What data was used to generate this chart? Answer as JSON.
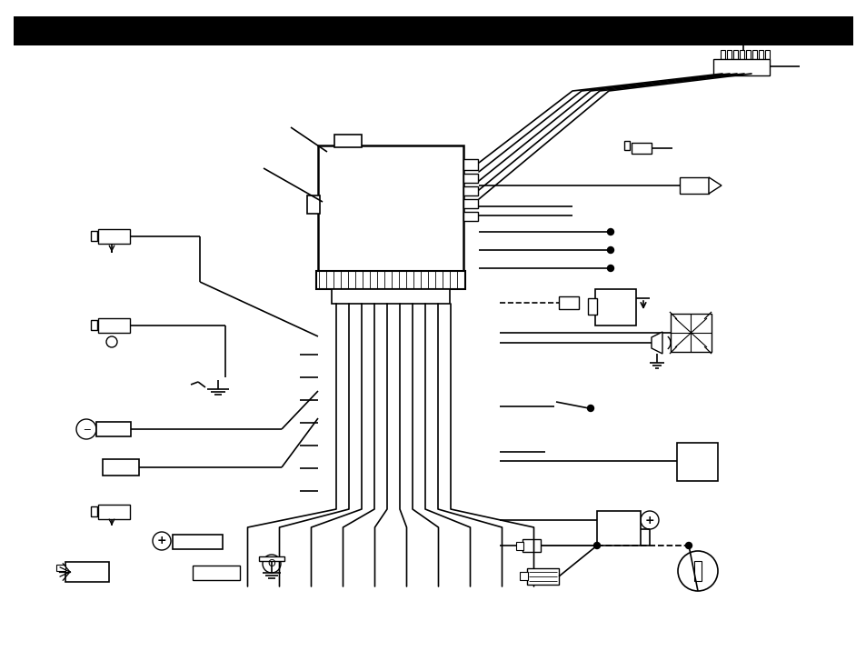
{
  "bg_color": "#ffffff",
  "fig_width": 9.54,
  "fig_height": 7.38,
  "dpi": 100
}
